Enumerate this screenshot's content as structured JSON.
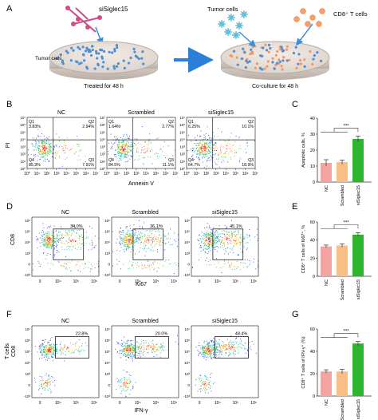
{
  "figure": {
    "panel_labels": [
      "A",
      "B",
      "C",
      "D",
      "E",
      "F",
      "G"
    ],
    "panel_a": {
      "reagent_label": "siSiglec15",
      "tumor_cells_label": "Tumor cells",
      "treated_label": "Treated for 48 h",
      "tumor_cells_label_2": "Tumor cells",
      "cd8_label": "CD8⁺ T cells",
      "coculture_label": "Co-culture for 48 h"
    },
    "groups": [
      "NC",
      "Scrambled",
      "siSiglec15"
    ],
    "colors": {
      "NC": "#f4a3a3",
      "Scrambled": "#f7bf86",
      "siSiglec15": "#2db52d",
      "axis": "#333333"
    },
    "panel_b": {
      "xlabel": "Annexin V",
      "ylabel": "PI",
      "tick_labels": [
        "10⁰",
        "10¹",
        "10²",
        "10³",
        "10⁴",
        "10⁵",
        "10⁶",
        "10⁷"
      ],
      "plots": [
        {
          "title": "NC",
          "q1": "Q1",
          "q1v": "3.83%",
          "q2": "Q2",
          "q2v": "2.94%",
          "q3": "Q3",
          "q3v": "7.91%",
          "q4": "Q4",
          "q4v": "85.3%"
        },
        {
          "title": "Scrambled",
          "q1": "Q1",
          "q1v": "1.64%",
          "q2": "Q2",
          "q2v": "2.77%",
          "q3": "Q3",
          "q3v": "11.1%",
          "q4": "Q4",
          "q4v": "84.5%"
        },
        {
          "title": "siSiglec15",
          "q1": "Q1",
          "q1v": "6.25%",
          "q2": "Q2",
          "q2v": "10.1%",
          "q3": "Q3",
          "q3v": "18.9%",
          "q4": "Q4",
          "q4v": "64.7%"
        }
      ]
    },
    "panel_d": {
      "xlabel": "Ki67",
      "ylabel": "CD8",
      "x_ticks": [
        "0",
        "10⁴",
        "10⁵",
        "10⁶"
      ],
      "y_ticks": [
        "10⁶",
        "10⁵",
        "10⁴",
        "10³",
        "0",
        "-10³"
      ],
      "plots": [
        {
          "title": "NC",
          "gate": "34.0%"
        },
        {
          "title": "Scrambled",
          "gate": "36.1%"
        },
        {
          "title": "siSiglec15",
          "gate": "45.1%"
        }
      ]
    },
    "panel_f": {
      "xlabel": "IFN-γ",
      "ylabel_1": "T cells",
      "ylabel_2": "CD8",
      "x_ticks": [
        "0",
        "10⁴",
        "10⁵",
        "10⁶"
      ],
      "y_ticks": [
        "10⁷",
        "10⁶",
        "10⁵",
        "10⁴",
        "10³",
        "0",
        "-10³"
      ],
      "plots": [
        {
          "title": "NC",
          "gate": "22.8%"
        },
        {
          "title": "Scrambled",
          "gate": "20.0%"
        },
        {
          "title": "siSiglec15",
          "gate": "48.4%"
        }
      ]
    },
    "significance": "***"
  },
  "chart_data": [
    {
      "type": "bar",
      "panel": "C",
      "categories": [
        "NC",
        "Scrambled",
        "siSiglec15"
      ],
      "values": [
        12,
        12.5,
        27
      ],
      "errors": [
        2,
        1.3,
        1.8
      ],
      "ylabel": "Apoptotic cells, %",
      "ylim": [
        0,
        40
      ],
      "yticks": [
        "0",
        "10",
        "20",
        "30",
        "40"
      ],
      "annotation": "***"
    },
    {
      "type": "bar",
      "panel": "E",
      "categories": [
        "NC",
        "Scrambled",
        "siSiglec15"
      ],
      "values": [
        33,
        34,
        46
      ],
      "errors": [
        1.5,
        1.8,
        2.2
      ],
      "ylabel": "CD8⁺ T cells of Ki67⁺, %",
      "ylim": [
        0,
        60
      ],
      "yticks": [
        "0",
        "20",
        "40",
        "60"
      ],
      "annotation": "***"
    },
    {
      "type": "bar",
      "panel": "G",
      "categories": [
        "NC",
        "Scrambled",
        "siSiglec15"
      ],
      "values": [
        22,
        22,
        47
      ],
      "errors": [
        1.5,
        2,
        1.8
      ],
      "ylabel": "CD8⁺ T cells of IFN-γ⁺ (%)",
      "ylim": [
        0,
        60
      ],
      "yticks": [
        "0",
        "20",
        "40",
        "60"
      ],
      "annotation": "***"
    }
  ]
}
